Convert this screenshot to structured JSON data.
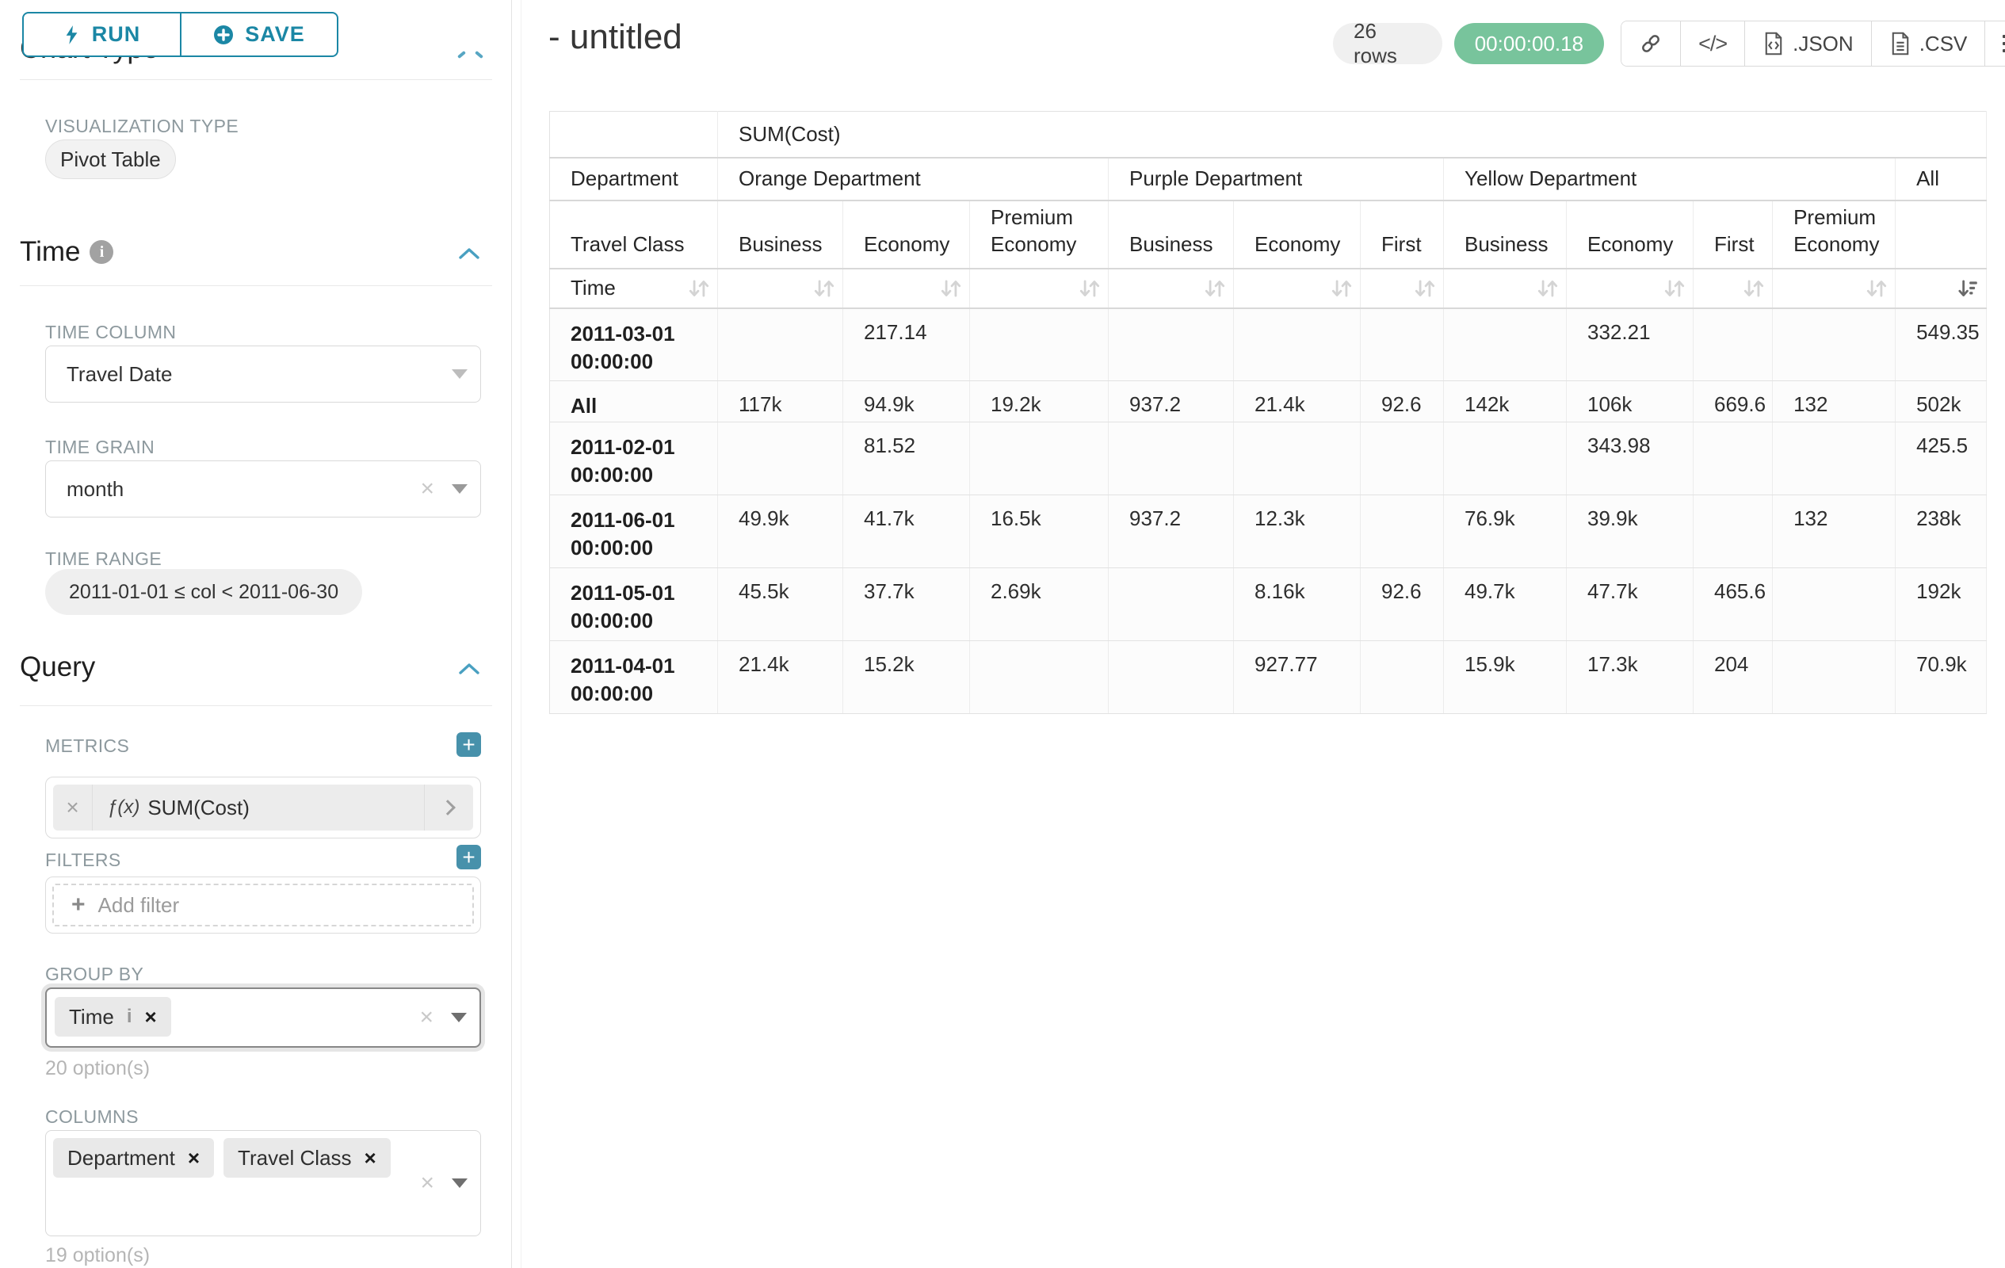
{
  "colors": {
    "accent": "#1b87a5",
    "success": "#78c49c"
  },
  "sidebar": {
    "run_label": "RUN",
    "save_label": "SAVE",
    "clipped_section_title": "Chart Type",
    "visualization": {
      "label": "VISUALIZATION TYPE",
      "value": "Pivot Table"
    },
    "time": {
      "title": "Time",
      "column_label": "TIME COLUMN",
      "column_value": "Travel Date",
      "grain_label": "TIME GRAIN",
      "grain_value": "month",
      "range_label": "TIME RANGE",
      "range_value": "2011-01-01 ≤ col < 2011-06-30"
    },
    "query": {
      "title": "Query",
      "metrics_label": "METRICS",
      "metric_fx": "ƒ(x)",
      "metric_value": "SUM(Cost)",
      "filters_label": "FILTERS",
      "add_filter_label": "Add filter",
      "group_by_label": "GROUP BY",
      "group_by_chips": [
        "Time"
      ],
      "group_by_hint": "20 option(s)",
      "columns_label": "COLUMNS",
      "columns_chips": [
        "Department",
        "Travel Class"
      ],
      "columns_hint": "19 option(s)"
    }
  },
  "header": {
    "title": "- untitled",
    "rows_badge": "26 rows",
    "timer_badge": "00:00:00.18",
    "code_glyph": "</>",
    "json_label": ".JSON",
    "csv_label": ".CSV"
  },
  "pivot_table": {
    "metric_header": "SUM(Cost)",
    "corner_row2": "Department",
    "corner_row3": "Travel Class",
    "corner_row4": "Time",
    "groups": [
      {
        "label": "Orange Department",
        "span": 3
      },
      {
        "label": "Purple Department",
        "span": 3
      },
      {
        "label": "Yellow Department",
        "span": 4
      },
      {
        "label": "All",
        "span": 1
      }
    ],
    "classes": [
      "Business",
      "Economy",
      "Premium Economy",
      "Business",
      "Economy",
      "First",
      "Business",
      "Economy",
      "First",
      "Premium Economy",
      ""
    ],
    "rows": [
      {
        "time": "2011-03-01 00:00:00",
        "cells": [
          "",
          "217.14",
          "",
          "",
          "",
          "",
          "",
          "332.21",
          "",
          "",
          "549.35"
        ]
      },
      {
        "time": "All",
        "cells": [
          "117k",
          "94.9k",
          "19.2k",
          "937.2",
          "21.4k",
          "92.6",
          "142k",
          "106k",
          "669.6",
          "132",
          "502k"
        ]
      },
      {
        "time": "2011-02-01 00:00:00",
        "cells": [
          "",
          "81.52",
          "",
          "",
          "",
          "",
          "",
          "343.98",
          "",
          "",
          "425.5"
        ]
      },
      {
        "time": "2011-06-01 00:00:00",
        "cells": [
          "49.9k",
          "41.7k",
          "16.5k",
          "937.2",
          "12.3k",
          "",
          "76.9k",
          "39.9k",
          "",
          "132",
          "238k"
        ]
      },
      {
        "time": "2011-05-01 00:00:00",
        "cells": [
          "45.5k",
          "37.7k",
          "2.69k",
          "",
          "8.16k",
          "92.6",
          "49.7k",
          "47.7k",
          "465.6",
          "",
          "192k"
        ]
      },
      {
        "time": "2011-04-01 00:00:00",
        "cells": [
          "21.4k",
          "15.2k",
          "",
          "",
          "927.77",
          "",
          "15.9k",
          "17.3k",
          "204",
          "",
          "70.9k"
        ]
      }
    ]
  }
}
